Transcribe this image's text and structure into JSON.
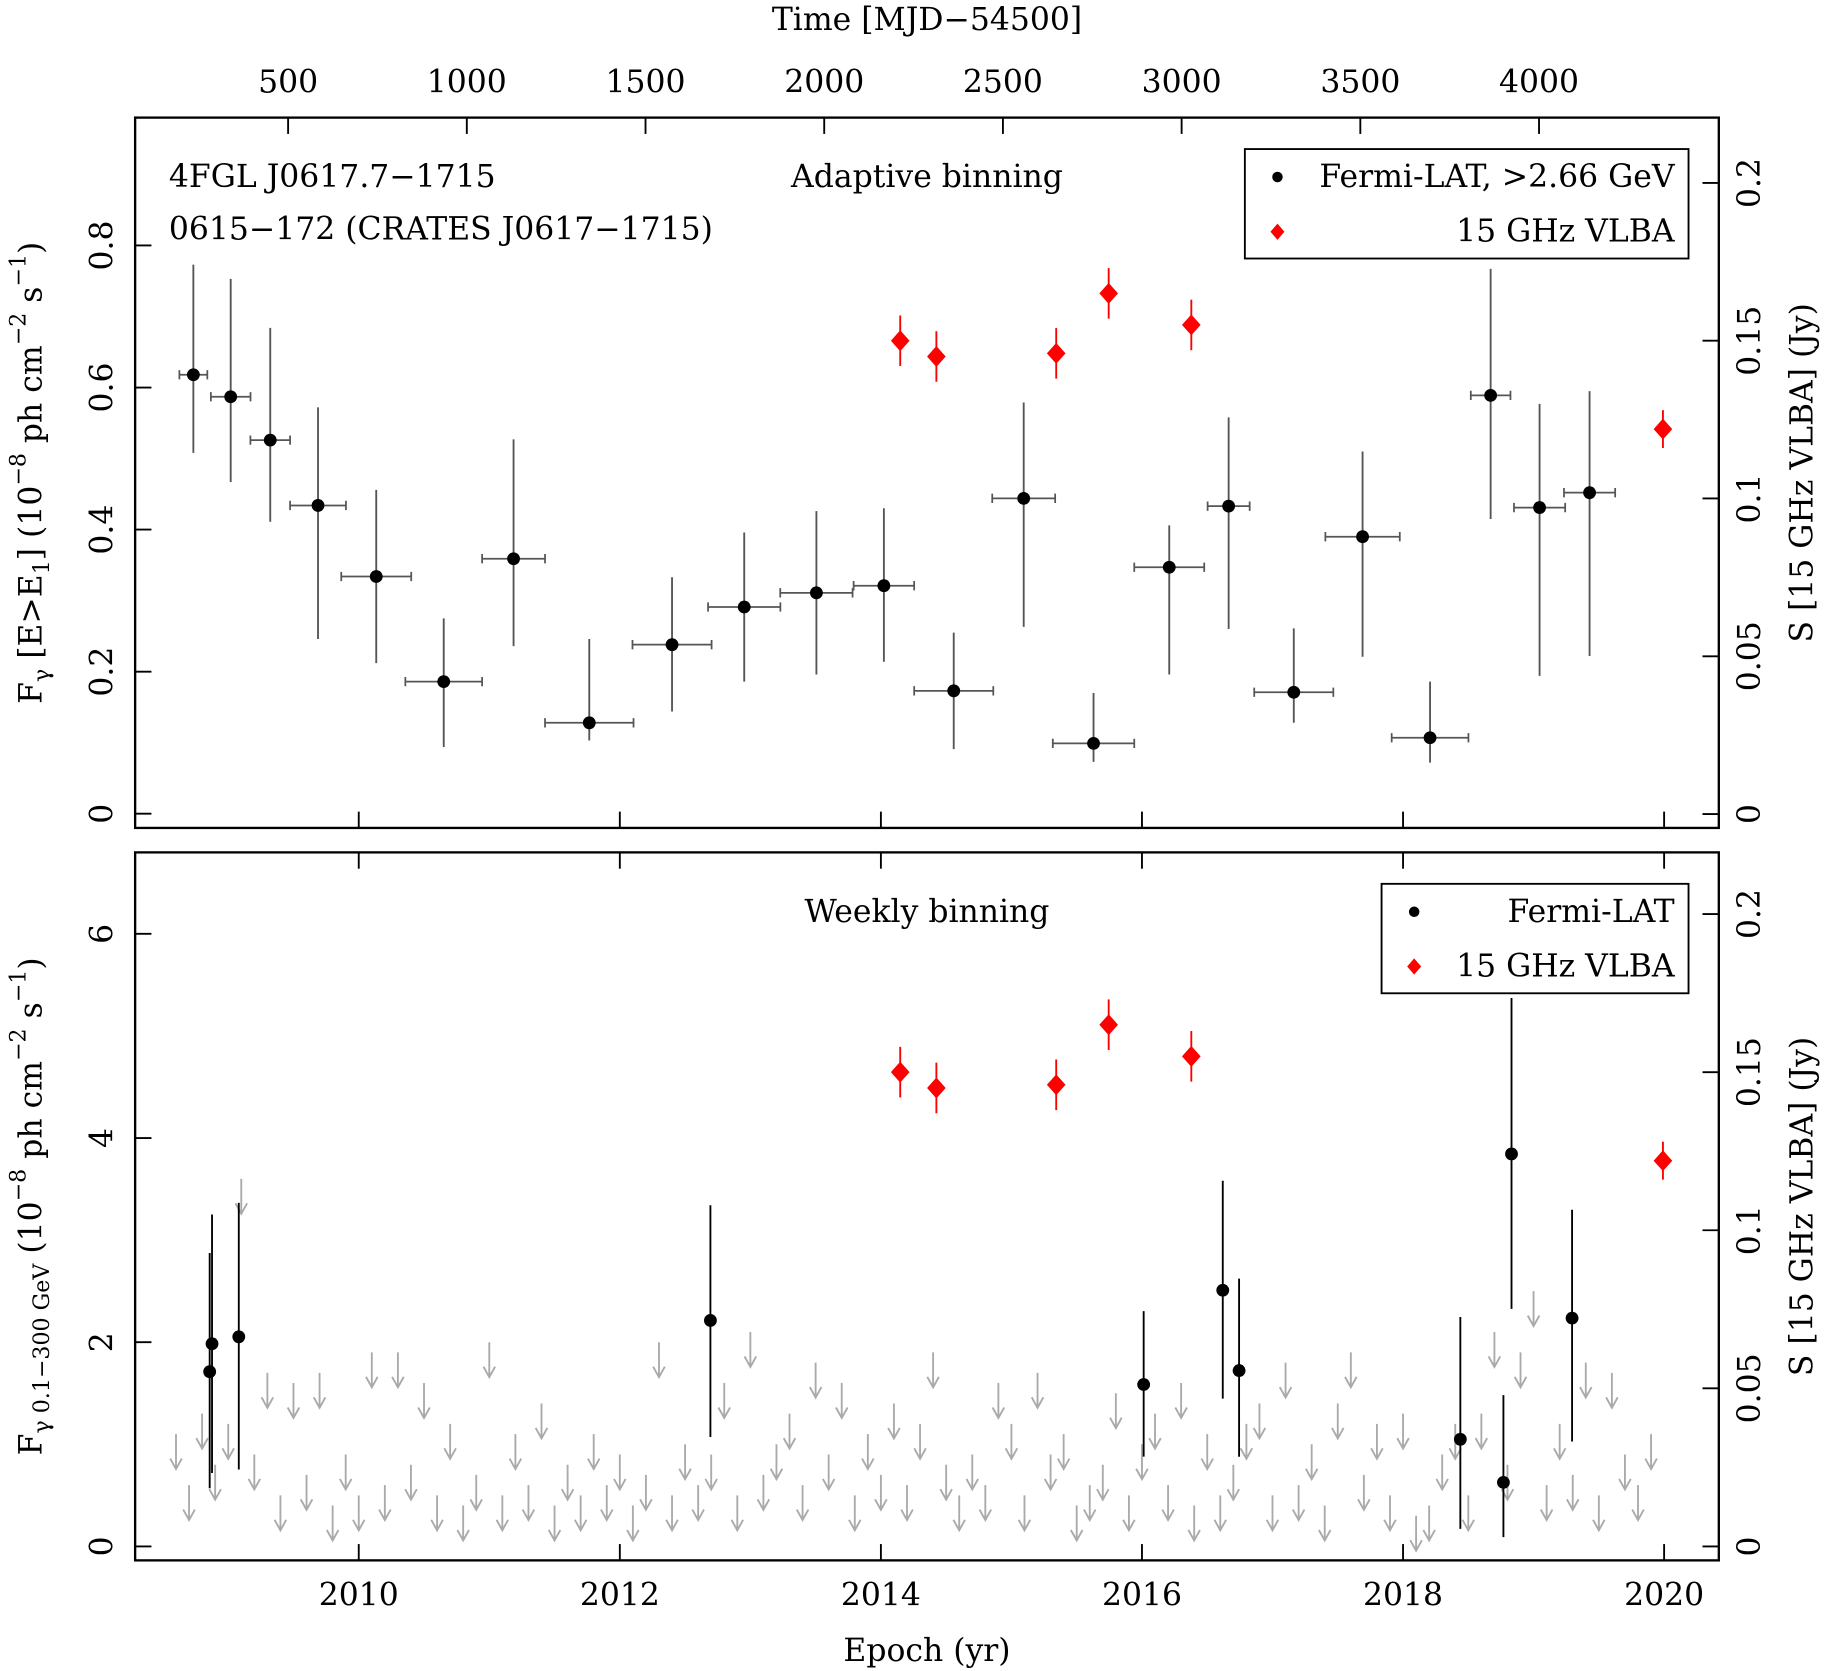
{
  "chart_data": [
    {
      "type": "scatter",
      "title": "Adaptive binning",
      "annotations": [
        {
          "text": "4FGL J0617.7−1715",
          "color": "#000000"
        },
        {
          "text": "0615−172 (CRATES J0617−1715)",
          "color": "#ff0000"
        }
      ],
      "x2label": "Time [MJD−54500]",
      "x2lim": [
        72,
        4503
      ],
      "x2ticks": [
        500,
        1000,
        1500,
        2000,
        2500,
        3000,
        3500,
        4000
      ],
      "xlim": [
        2008.287,
        2020.419
      ],
      "xticks": [
        2010,
        2012,
        2014,
        2016,
        2018,
        2020
      ],
      "ylim": [
        -0.02,
        0.98
      ],
      "yticks": [
        0,
        0.2,
        0.4,
        0.6,
        0.8
      ],
      "y2lim": [
        -0.0044,
        0.2207
      ],
      "y2ticks": [
        0,
        0.05,
        0.1,
        0.15,
        0.2
      ],
      "ylabel": [
        {
          "text": "F"
        },
        {
          "text": "γ",
          "shift": "sub"
        },
        {
          "text": " [E>E"
        },
        {
          "text": "1",
          "shift": "sub"
        },
        {
          "text": "] (10"
        },
        {
          "text": "−8",
          "shift": "sup"
        },
        {
          "text": " ph cm"
        },
        {
          "text": "−2",
          "shift": "sup"
        },
        {
          "text": " s"
        },
        {
          "text": "−1",
          "shift": "sup"
        },
        {
          "text": ")"
        }
      ],
      "y2label": "S [15 GHz VLBA] (Jy)",
      "legend": "upper right",
      "series": [
        {
          "name": "Fermi-LAT, >2.66 GeV",
          "color": "#000000",
          "marker": "circle",
          "x": [
            2008.733,
            2009.019,
            2009.322,
            2009.688,
            2010.134,
            2010.651,
            2011.186,
            2011.766,
            2012.4,
            2012.953,
            2013.506,
            2014.023,
            2014.558,
            2015.094,
            2015.629,
            2016.209,
            2016.664,
            2017.163,
            2017.69,
            2018.207,
            2018.671,
            2019.046,
            2019.429
          ],
          "xerr": [
            0.107,
            0.152,
            0.152,
            0.214,
            0.268,
            0.294,
            0.241,
            0.339,
            0.303,
            0.277,
            0.277,
            0.232,
            0.303,
            0.241,
            0.312,
            0.268,
            0.161,
            0.303,
            0.285,
            0.294,
            0.152,
            0.196,
            0.196
          ],
          "values": [
            0.618,
            0.587,
            0.526,
            0.434,
            0.334,
            0.186,
            0.359,
            0.128,
            0.238,
            0.291,
            0.311,
            0.321,
            0.173,
            0.444,
            0.099,
            0.347,
            0.433,
            0.171,
            0.39,
            0.107,
            0.589,
            0.431,
            0.452
          ],
          "yerr": [
            [
              0.11,
              0.155
            ],
            [
              0.12,
              0.166
            ],
            [
              0.115,
              0.158
            ],
            [
              0.188,
              0.138
            ],
            [
              0.122,
              0.122
            ],
            [
              0.092,
              0.089
            ],
            [
              0.123,
              0.168
            ],
            [
              0.025,
              0.118
            ],
            [
              0.094,
              0.095
            ],
            [
              0.105,
              0.105
            ],
            [
              0.115,
              0.115
            ],
            [
              0.107,
              0.109
            ],
            [
              0.082,
              0.082
            ],
            [
              0.181,
              0.135
            ],
            [
              0.026,
              0.071
            ],
            [
              0.151,
              0.059
            ],
            [
              0.173,
              0.125
            ],
            [
              0.043,
              0.09
            ],
            [
              0.169,
              0.12
            ],
            [
              0.035,
              0.079
            ],
            [
              0.174,
              0.178
            ],
            [
              0.237,
              0.146
            ],
            [
              0.23,
              0.143
            ]
          ]
        },
        {
          "name": "15 GHz VLBA",
          "color": "#ff0000",
          "marker": "diamond",
          "axis": "y2",
          "x": [
            2014.148,
            2014.425,
            2015.343,
            2015.745,
            2016.378,
            2019.991
          ],
          "values": [
            0.15,
            0.145,
            0.146,
            0.165,
            0.155,
            0.122
          ],
          "yerr": [
            [
              0.008,
              0.008
            ],
            [
              0.008,
              0.008
            ],
            [
              0.008,
              0.008
            ],
            [
              0.008,
              0.008
            ],
            [
              0.008,
              0.008
            ],
            [
              0.006,
              0.006
            ]
          ]
        }
      ]
    },
    {
      "type": "scatter",
      "title": "Weekly binning",
      "xlabel": "Epoch (yr)",
      "xlim": [
        2008.287,
        2020.419
      ],
      "xticks": [
        2010,
        2012,
        2014,
        2016,
        2018,
        2020
      ],
      "ylim": [
        -0.137,
        6.798
      ],
      "yticks": [
        0,
        2,
        4,
        6
      ],
      "y2lim": [
        -0.0044,
        0.2195
      ],
      "y2ticks": [
        0,
        0.05,
        0.1,
        0.15,
        0.2
      ],
      "ylabel": [
        {
          "text": "F"
        },
        {
          "text": "γ 0.1−300 GeV",
          "shift": "sub"
        },
        {
          "text": " (10"
        },
        {
          "text": "−8",
          "shift": "sup"
        },
        {
          "text": " ph cm"
        },
        {
          "text": "−2",
          "shift": "sup"
        },
        {
          "text": " s"
        },
        {
          "text": "−1",
          "shift": "sup"
        },
        {
          "text": ")"
        }
      ],
      "y2label": "S [15 GHz VLBA] (Jy)",
      "legend": "upper right",
      "series": [
        {
          "color": "#aaaaaa",
          "marker": "arrow",
          "x": [
            2008.6,
            2008.7,
            2008.8,
            2008.9,
            2009.0,
            2009.1,
            2009.2,
            2009.3,
            2009.4,
            2009.5,
            2009.6,
            2009.7,
            2009.8,
            2009.9,
            2010.0,
            2010.1,
            2010.2,
            2010.3,
            2010.4,
            2010.5,
            2010.6,
            2010.7,
            2010.8,
            2010.9,
            2011.0,
            2011.1,
            2011.2,
            2011.3,
            2011.4,
            2011.5,
            2011.6,
            2011.7,
            2011.8,
            2011.9,
            2012.0,
            2012.1,
            2012.2,
            2012.3,
            2012.4,
            2012.5,
            2012.6,
            2012.7,
            2012.8,
            2012.9,
            2013.0,
            2013.1,
            2013.2,
            2013.3,
            2013.4,
            2013.5,
            2013.6,
            2013.7,
            2013.8,
            2013.9,
            2014.0,
            2014.1,
            2014.2,
            2014.3,
            2014.4,
            2014.5,
            2014.6,
            2014.7,
            2014.8,
            2014.9,
            2015.0,
            2015.1,
            2015.2,
            2015.3,
            2015.4,
            2015.5,
            2015.6,
            2015.7,
            2015.8,
            2015.9,
            2016.0,
            2016.1,
            2016.2,
            2016.3,
            2016.4,
            2016.5,
            2016.6,
            2016.7,
            2016.8,
            2016.9,
            2017.0,
            2017.1,
            2017.2,
            2017.3,
            2017.4,
            2017.5,
            2017.6,
            2017.7,
            2017.8,
            2017.9,
            2018.0,
            2018.1,
            2018.2,
            2018.3,
            2018.4,
            2018.5,
            2018.6,
            2018.7,
            2018.8,
            2018.9,
            2019.0,
            2019.1,
            2019.2,
            2019.3,
            2019.4,
            2019.5,
            2019.6,
            2019.7,
            2019.8,
            2019.9
          ],
          "values": [
            1.1,
            0.6,
            1.3,
            0.8,
            1.2,
            3.6,
            0.9,
            1.7,
            0.5,
            1.6,
            0.7,
            1.7,
            0.4,
            0.9,
            0.5,
            1.9,
            0.6,
            1.9,
            0.8,
            1.6,
            0.5,
            1.2,
            0.4,
            0.7,
            2.0,
            0.5,
            1.1,
            0.6,
            1.4,
            0.4,
            0.8,
            0.5,
            1.1,
            0.6,
            0.9,
            0.4,
            0.7,
            2.0,
            0.5,
            1.0,
            0.6,
            0.9,
            1.6,
            0.5,
            2.1,
            0.7,
            1.0,
            1.3,
            0.6,
            1.8,
            0.9,
            1.6,
            0.5,
            1.1,
            0.7,
            1.4,
            0.6,
            1.2,
            1.9,
            0.8,
            0.5,
            0.9,
            0.6,
            1.6,
            1.2,
            0.5,
            1.7,
            0.9,
            1.1,
            0.4,
            0.6,
            0.8,
            1.5,
            0.5,
            1.0,
            1.3,
            0.6,
            1.6,
            0.4,
            1.1,
            0.5,
            0.8,
            1.2,
            1.4,
            0.5,
            1.8,
            0.6,
            1.0,
            0.4,
            1.4,
            1.9,
            0.7,
            1.2,
            0.5,
            1.3,
            0.3,
            0.4,
            0.9,
            1.2,
            0.5,
            1.3,
            2.1,
            0.8,
            1.9,
            2.5,
            0.6,
            1.2,
            0.7,
            1.8,
            0.5,
            1.7,
            0.9,
            0.6,
            1.1
          ]
        },
        {
          "name": "Fermi-LAT",
          "color": "#000000",
          "marker": "circle",
          "x": [
            2008.858,
            2008.876,
            2009.081,
            2012.694,
            2016.013,
            2016.619,
            2016.744,
            2018.439,
            2018.769,
            2018.831,
            2019.295
          ],
          "values": [
            1.711,
            1.985,
            2.053,
            2.213,
            1.586,
            2.509,
            1.722,
            1.049,
            0.627,
            3.844,
            2.236
          ],
          "yerr": [
            [
              1.141,
              1.163
            ],
            [
              1.266,
              1.266
            ],
            [
              1.3,
              1.312
            ],
            [
              1.141,
              1.129
            ],
            [
              0.707,
              0.719
            ],
            [
              1.061,
              1.072
            ],
            [
              0.844,
              0.901
            ],
            [
              0.878,
              1.198
            ],
            [
              0.536,
              0.855
            ],
            [
              1.517,
              1.528
            ],
            [
              1.209,
              1.061
            ]
          ]
        },
        {
          "name": "15 GHz VLBA",
          "color": "#ff0000",
          "marker": "diamond",
          "axis": "y2",
          "x": [
            2014.148,
            2014.425,
            2015.343,
            2015.745,
            2016.378,
            2019.991
          ],
          "values": [
            0.15,
            0.145,
            0.146,
            0.165,
            0.155,
            0.122
          ],
          "yerr": [
            [
              0.008,
              0.008
            ],
            [
              0.008,
              0.008
            ],
            [
              0.008,
              0.008
            ],
            [
              0.008,
              0.008
            ],
            [
              0.008,
              0.008
            ],
            [
              0.006,
              0.006
            ]
          ]
        }
      ]
    }
  ]
}
